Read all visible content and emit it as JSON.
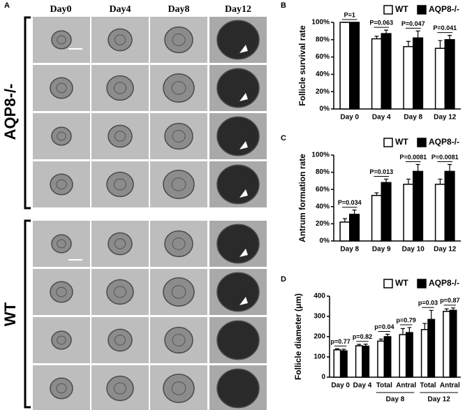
{
  "panel_a": {
    "panel": "A",
    "columns": [
      "Day0",
      "Day4",
      "Day8",
      "Day12"
    ],
    "groups": [
      "AQP8-/-",
      "WT"
    ]
  },
  "chart_data": [
    {
      "type": "bar",
      "panel": "B",
      "ylabel": "Follicle survival rate",
      "categories": [
        "Day 0",
        "Day 4",
        "Day 8",
        "Day 12"
      ],
      "series": [
        {
          "name": "WT",
          "color": "#ffffff",
          "values": [
            100,
            81,
            72,
            70
          ],
          "errors": [
            0,
            3,
            6,
            9
          ]
        },
        {
          "name": "AQP8-/-",
          "color": "#000000",
          "values": [
            100,
            87,
            82,
            80
          ],
          "errors": [
            0,
            4,
            8,
            5
          ]
        }
      ],
      "annotations": [
        "P=1",
        "P=0.063",
        "P=0.047",
        "P=0.041"
      ],
      "ylim": [
        0,
        100
      ],
      "yticks": [
        {
          "value": 0,
          "label": "0%"
        },
        {
          "value": 20,
          "label": "20%"
        },
        {
          "value": 40,
          "label": "40%"
        },
        {
          "value": 60,
          "label": "60%"
        },
        {
          "value": 80,
          "label": "80%"
        },
        {
          "value": 100,
          "label": "100%"
        }
      ]
    },
    {
      "type": "bar",
      "panel": "C",
      "ylabel": "Antrum formation rate",
      "categories": [
        "Day 8",
        "Day 9",
        "Day 10",
        "Day 12"
      ],
      "series": [
        {
          "name": "WT",
          "color": "#ffffff",
          "values": [
            22,
            53,
            66,
            66
          ],
          "errors": [
            4,
            3,
            6,
            6
          ]
        },
        {
          "name": "AQP8-/-",
          "color": "#000000",
          "values": [
            31,
            68,
            81,
            81
          ],
          "errors": [
            5,
            4,
            8,
            8
          ]
        }
      ],
      "annotations": [
        "P=0.034",
        "P=0.013",
        "P=0.0081",
        "P=0.0081"
      ],
      "ylim": [
        0,
        100
      ],
      "yticks": [
        {
          "value": 0,
          "label": "0%"
        },
        {
          "value": 20,
          "label": "20%"
        },
        {
          "value": 40,
          "label": "40%"
        },
        {
          "value": 60,
          "label": "60%"
        },
        {
          "value": 80,
          "label": "80%"
        },
        {
          "value": 100,
          "label": "100%"
        }
      ]
    },
    {
      "type": "bar",
      "panel": "D",
      "ylabel": "Follicle diameter (μm)",
      "categories": [
        "Day 0",
        "Day 4",
        "Total",
        "Antral",
        "Total",
        "Antral"
      ],
      "group_labels": [
        "Day 8",
        "Day 12"
      ],
      "series": [
        {
          "name": "WT",
          "color": "#ffffff",
          "values": [
            135,
            155,
            178,
            210,
            235,
            325
          ],
          "errors": [
            5,
            7,
            10,
            30,
            30,
            12
          ]
        },
        {
          "name": "AQP8-/-",
          "color": "#000000",
          "values": [
            130,
            153,
            200,
            220,
            285,
            330
          ],
          "errors": [
            8,
            10,
            12,
            25,
            45,
            12
          ]
        }
      ],
      "annotations": [
        "p=0.77",
        "p=0.82",
        "p=0.04",
        "p=0.79",
        "p=0.03",
        "p=0.87"
      ],
      "ylim": [
        0,
        400
      ],
      "yticks": [
        0,
        100,
        200,
        300,
        400
      ]
    }
  ]
}
